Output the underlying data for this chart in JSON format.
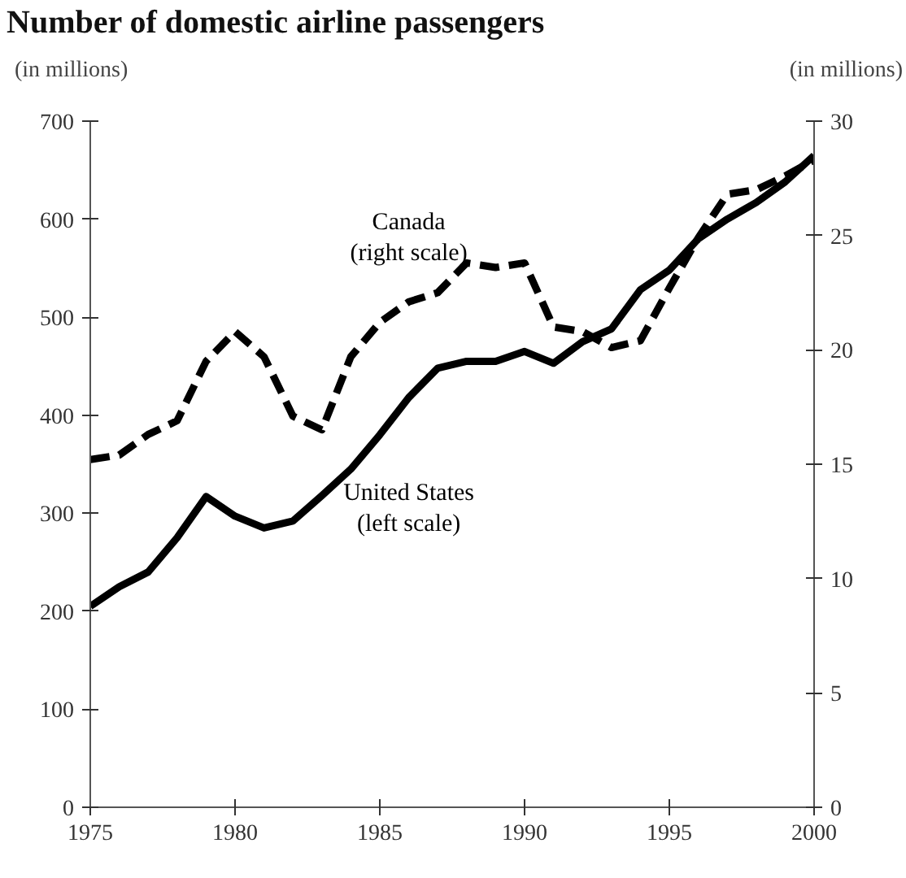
{
  "chart_data": {
    "type": "line",
    "title": "Number of domestic airline passengers",
    "ylabel": "(in millions)",
    "y2label": "(in millions)",
    "x": [
      1975,
      1976,
      1977,
      1978,
      1979,
      1980,
      1981,
      1982,
      1983,
      1984,
      1985,
      1986,
      1987,
      1988,
      1989,
      1990,
      1991,
      1992,
      1993,
      1994,
      1995,
      1996,
      1997,
      1998,
      1999,
      2000
    ],
    "series": [
      {
        "name": "United States",
        "color": "#000000",
        "line_style": "solid",
        "values": [
          205,
          225,
          240,
          275,
          317,
          297,
          285,
          292,
          318,
          345,
          380,
          418,
          448,
          455,
          455,
          465,
          453,
          475,
          488,
          528,
          548,
          580,
          600,
          617,
          638,
          665
        ]
      },
      {
        "name": "Canada",
        "color": "#000000",
        "line_style": "dashed",
        "axis": "y2",
        "values": [
          15.2,
          15.4,
          16.3,
          16.9,
          19.5,
          20.8,
          19.7,
          17.1,
          16.5,
          19.7,
          21.2,
          22.1,
          22.5,
          23.8,
          23.6,
          23.8,
          21.0,
          20.8,
          20.1,
          20.4,
          22.7,
          24.9,
          26.8,
          27.0,
          27.6,
          28.3
        ]
      }
    ],
    "annotations": [
      "(left scale)",
      "(right scale)"
    ],
    "xlim": [
      1975,
      2000
    ],
    "xticks": [
      1975,
      1980,
      1985,
      1990,
      1995,
      2000
    ],
    "ylim": [
      0,
      700
    ],
    "yticks": [
      0,
      100,
      200,
      300,
      400,
      500,
      600,
      700
    ],
    "y2lim": [
      0,
      30
    ],
    "y2ticks": [
      0,
      5,
      10,
      15,
      20,
      25,
      30
    ],
    "grid": false
  }
}
